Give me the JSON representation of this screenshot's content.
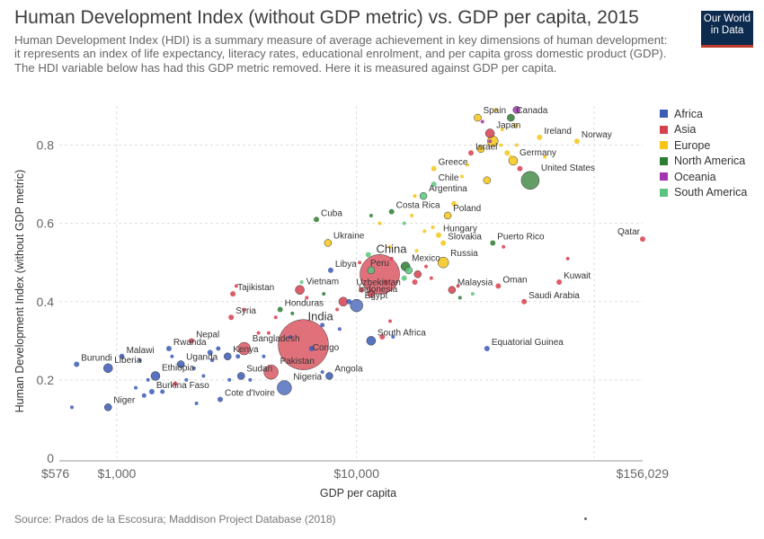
{
  "header": {
    "title": "Human Development Index (without GDP metric) vs. GDP per capita, 2015",
    "subtitle": "Human Development Index (HDI) is a summary measure of average achievement in key dimensions of human development: it represents an index of life expectancy, literacy rates, educational enrolment, and per capita gross domestic product (GDP). The HDI variable below has had this GDP metric removed. Here it is measured against GDP per capita.",
    "logo_line1": "Our World",
    "logo_line2": "in Data"
  },
  "source": "Source: Prados de la Escosura; Maddison Project Database (2018)",
  "colors": {
    "Africa": "#3b5bb5",
    "Asia": "#d6414f",
    "Europe": "#f5c518",
    "North America": "#2e7d32",
    "Oceania": "#a235b0",
    "South America": "#5cc47e"
  },
  "chart_data": {
    "type": "scatter",
    "xlabel": "GDP per capita",
    "ylabel": "Human Development Index (without GDP metric)",
    "xscale": "log",
    "xlim": [
      576,
      156029
    ],
    "ylim": [
      0,
      0.9
    ],
    "x_ticks": [
      576,
      1000,
      10000,
      156029
    ],
    "x_tick_labels": [
      "$576",
      "$1,000",
      "$10,000",
      "$156,029"
    ],
    "y_ticks": [
      0,
      0.2,
      0.4,
      0.6,
      0.8
    ],
    "y_tick_labels": [
      "0",
      "0.2",
      "0.4",
      "0.6",
      "0.8"
    ],
    "grid": true,
    "legend_position": "right",
    "legend": [
      "Africa",
      "Asia",
      "Europe",
      "North America",
      "Oceania",
      "South America"
    ],
    "points": [
      {
        "label": "India",
        "x": 6000,
        "y": 0.29,
        "r": 28,
        "region": "Asia"
      },
      {
        "label": "China",
        "x": 12500,
        "y": 0.47,
        "r": 22,
        "region": "Asia"
      },
      {
        "label": "Peru",
        "x": 11500,
        "y": 0.48,
        "r": 4,
        "region": "South America"
      },
      {
        "label": "United States",
        "x": 53000,
        "y": 0.71,
        "r": 10,
        "region": "North America"
      },
      {
        "label": "Canada",
        "x": 44000,
        "y": 0.87,
        "r": 4,
        "region": "North America"
      },
      {
        "label": "Spain",
        "x": 32000,
        "y": 0.87,
        "r": 4,
        "region": "Europe"
      },
      {
        "label": "Japan",
        "x": 36000,
        "y": 0.83,
        "r": 5,
        "region": "Asia"
      },
      {
        "label": "Ireland",
        "x": 58000,
        "y": 0.82,
        "r": 3,
        "region": "Europe"
      },
      {
        "label": "Norway",
        "x": 83000,
        "y": 0.81,
        "r": 3,
        "region": "Europe"
      },
      {
        "label": "Israel",
        "x": 30000,
        "y": 0.78,
        "r": 3,
        "region": "Asia"
      },
      {
        "label": "Germany",
        "x": 45000,
        "y": 0.76,
        "r": 5,
        "region": "Europe"
      },
      {
        "label": "Greece",
        "x": 21000,
        "y": 0.74,
        "r": 3,
        "region": "Europe"
      },
      {
        "label": "Chile",
        "x": 21000,
        "y": 0.7,
        "r": 3,
        "region": "South America"
      },
      {
        "label": "Argentina",
        "x": 19000,
        "y": 0.67,
        "r": 4,
        "region": "South America"
      },
      {
        "label": "Costa Rica",
        "x": 14000,
        "y": 0.63,
        "r": 3,
        "region": "North America"
      },
      {
        "label": "Cuba",
        "x": 6800,
        "y": 0.61,
        "r": 3,
        "region": "North America"
      },
      {
        "label": "Poland",
        "x": 24000,
        "y": 0.62,
        "r": 4,
        "region": "Europe"
      },
      {
        "label": "Hungary",
        "x": 22000,
        "y": 0.57,
        "r": 3,
        "region": "Europe"
      },
      {
        "label": "Slovakia",
        "x": 23000,
        "y": 0.55,
        "r": 3,
        "region": "Europe"
      },
      {
        "label": "Puerto Rico",
        "x": 37000,
        "y": 0.55,
        "r": 3,
        "region": "North America"
      },
      {
        "label": "Qatar",
        "x": 156029,
        "y": 0.56,
        "r": 3,
        "region": "Asia"
      },
      {
        "label": "Ukraine",
        "x": 7600,
        "y": 0.55,
        "r": 4,
        "region": "Europe"
      },
      {
        "label": "Russia",
        "x": 23000,
        "y": 0.5,
        "r": 6,
        "region": "Europe"
      },
      {
        "label": "Mexico",
        "x": 16000,
        "y": 0.49,
        "r": 5,
        "region": "North America"
      },
      {
        "label": "Libya",
        "x": 7800,
        "y": 0.48,
        "r": 3,
        "region": "Africa"
      },
      {
        "label": "Uzbekistan",
        "x": 10500,
        "y": 0.43,
        "r": 3,
        "region": "Asia"
      },
      {
        "label": "Indonesia",
        "x": 11500,
        "y": 0.42,
        "r": 4,
        "region": "Asia"
      },
      {
        "label": "Malaysia",
        "x": 25000,
        "y": 0.43,
        "r": 4,
        "region": "Asia"
      },
      {
        "label": "Oman",
        "x": 39000,
        "y": 0.44,
        "r": 3,
        "region": "Asia"
      },
      {
        "label": "Kuwait",
        "x": 70000,
        "y": 0.45,
        "r": 3,
        "region": "Asia"
      },
      {
        "label": "Saudi Arabia",
        "x": 50000,
        "y": 0.4,
        "r": 3,
        "region": "Asia"
      },
      {
        "label": "Tajikistan",
        "x": 3050,
        "y": 0.42,
        "r": 3,
        "region": "Asia"
      },
      {
        "label": "Vietnam",
        "x": 5800,
        "y": 0.43,
        "r": 5,
        "region": "Asia"
      },
      {
        "label": "Honduras",
        "x": 4800,
        "y": 0.38,
        "r": 3,
        "region": "North America"
      },
      {
        "label": "Egypt",
        "x": 10000,
        "y": 0.39,
        "r": 7,
        "region": "Africa"
      },
      {
        "label": "Syria",
        "x": 3000,
        "y": 0.36,
        "r": 3,
        "region": "Asia"
      },
      {
        "label": "South Africa",
        "x": 11500,
        "y": 0.3,
        "r": 5,
        "region": "Africa"
      },
      {
        "label": "Equatorial Guinea",
        "x": 35000,
        "y": 0.28,
        "r": 3,
        "region": "Africa"
      },
      {
        "label": "Nepal",
        "x": 2050,
        "y": 0.3,
        "r": 3,
        "region": "Asia"
      },
      {
        "label": "Bangladesh",
        "x": 3400,
        "y": 0.28,
        "r": 7,
        "region": "Asia"
      },
      {
        "label": "Kenya",
        "x": 2900,
        "y": 0.26,
        "r": 4,
        "region": "Africa"
      },
      {
        "label": "Rwanda",
        "x": 1650,
        "y": 0.28,
        "r": 3,
        "region": "Africa"
      },
      {
        "label": "Malawi",
        "x": 1050,
        "y": 0.26,
        "r": 3,
        "region": "Africa"
      },
      {
        "label": "Uganda",
        "x": 1850,
        "y": 0.24,
        "r": 4,
        "region": "Africa"
      },
      {
        "label": "Congo",
        "x": 6500,
        "y": 0.28,
        "r": 3,
        "region": "Africa"
      },
      {
        "label": "Burundi",
        "x": 680,
        "y": 0.24,
        "r": 3,
        "region": "Africa"
      },
      {
        "label": "Ethiopia",
        "x": 1450,
        "y": 0.21,
        "r": 5,
        "region": "Africa"
      },
      {
        "label": "Liberia",
        "x": 920,
        "y": 0.23,
        "r": 5,
        "region": "Africa"
      },
      {
        "label": "Pakistan",
        "x": 4400,
        "y": 0.22,
        "r": 8,
        "region": "Asia"
      },
      {
        "label": "Sudan",
        "x": 3300,
        "y": 0.21,
        "r": 4,
        "region": "Africa"
      },
      {
        "label": "Angola",
        "x": 7700,
        "y": 0.21,
        "r": 4,
        "region": "Africa"
      },
      {
        "label": "Nigeria",
        "x": 5000,
        "y": 0.18,
        "r": 8,
        "region": "Africa"
      },
      {
        "label": "Burkina Faso",
        "x": 1400,
        "y": 0.17,
        "r": 3,
        "region": "Africa"
      },
      {
        "label": "Cote d'Ivoire",
        "x": 2700,
        "y": 0.15,
        "r": 3,
        "region": "Africa"
      },
      {
        "label": "Niger",
        "x": 920,
        "y": 0.13,
        "r": 4,
        "region": "Africa"
      },
      {
        "x": 650,
        "y": 0.13,
        "r": 2,
        "region": "Africa"
      },
      {
        "x": 1300,
        "y": 0.16,
        "r": 2.5,
        "region": "Africa"
      },
      {
        "x": 1550,
        "y": 0.17,
        "r": 2.5,
        "region": "Africa"
      },
      {
        "x": 1200,
        "y": 0.18,
        "r": 2,
        "region": "Africa"
      },
      {
        "x": 1750,
        "y": 0.19,
        "r": 2.5,
        "region": "Asia"
      },
      {
        "x": 1950,
        "y": 0.2,
        "r": 2,
        "region": "Africa"
      },
      {
        "x": 2150,
        "y": 0.14,
        "r": 2,
        "region": "Africa"
      },
      {
        "x": 2300,
        "y": 0.21,
        "r": 2,
        "region": "Africa"
      },
      {
        "x": 2500,
        "y": 0.25,
        "r": 2,
        "region": "Africa"
      },
      {
        "x": 2450,
        "y": 0.27,
        "r": 3,
        "region": "Africa"
      },
      {
        "x": 2650,
        "y": 0.28,
        "r": 2.5,
        "region": "Africa"
      },
      {
        "x": 3200,
        "y": 0.26,
        "r": 2.5,
        "region": "Africa"
      },
      {
        "x": 1250,
        "y": 0.25,
        "r": 2,
        "region": "Africa"
      },
      {
        "x": 1700,
        "y": 0.26,
        "r": 2,
        "region": "Africa"
      },
      {
        "x": 1350,
        "y": 0.2,
        "r": 2,
        "region": "Africa"
      },
      {
        "x": 2100,
        "y": 0.23,
        "r": 2,
        "region": "Africa"
      },
      {
        "x": 2950,
        "y": 0.2,
        "r": 2,
        "region": "Africa"
      },
      {
        "x": 3600,
        "y": 0.2,
        "r": 2,
        "region": "Africa"
      },
      {
        "x": 4100,
        "y": 0.26,
        "r": 2,
        "region": "Africa"
      },
      {
        "x": 5300,
        "y": 0.31,
        "r": 2,
        "region": "Africa"
      },
      {
        "x": 7200,
        "y": 0.34,
        "r": 2.5,
        "region": "Africa"
      },
      {
        "x": 9300,
        "y": 0.4,
        "r": 3,
        "region": "Africa"
      },
      {
        "x": 7200,
        "y": 0.22,
        "r": 2,
        "region": "Africa"
      },
      {
        "x": 8500,
        "y": 0.33,
        "r": 2,
        "region": "Africa"
      },
      {
        "x": 12800,
        "y": 0.31,
        "r": 3,
        "region": "Asia"
      },
      {
        "x": 14200,
        "y": 0.31,
        "r": 2,
        "region": "Africa"
      },
      {
        "x": 13800,
        "y": 0.35,
        "r": 2,
        "region": "Asia"
      },
      {
        "x": 13200,
        "y": 0.45,
        "r": 3,
        "region": "Asia"
      },
      {
        "x": 18000,
        "y": 0.47,
        "r": 4,
        "region": "Asia"
      },
      {
        "x": 17500,
        "y": 0.45,
        "r": 3,
        "region": "Asia"
      },
      {
        "x": 8800,
        "y": 0.4,
        "r": 5,
        "region": "Asia"
      },
      {
        "x": 8300,
        "y": 0.38,
        "r": 2,
        "region": "Asia"
      },
      {
        "x": 7300,
        "y": 0.42,
        "r": 2,
        "region": "North America"
      },
      {
        "x": 6200,
        "y": 0.41,
        "r": 2,
        "region": "Asia"
      },
      {
        "x": 5400,
        "y": 0.37,
        "r": 2,
        "region": "North America"
      },
      {
        "x": 4600,
        "y": 0.36,
        "r": 2,
        "region": "Asia"
      },
      {
        "x": 4300,
        "y": 0.32,
        "r": 2,
        "region": "Asia"
      },
      {
        "x": 3900,
        "y": 0.32,
        "r": 2,
        "region": "Asia"
      },
      {
        "x": 3400,
        "y": 0.38,
        "r": 2,
        "region": "Asia"
      },
      {
        "x": 3150,
        "y": 0.44,
        "r": 2,
        "region": "Asia"
      },
      {
        "x": 5900,
        "y": 0.45,
        "r": 2,
        "region": "South America"
      },
      {
        "x": 11200,
        "y": 0.52,
        "r": 3,
        "region": "South America"
      },
      {
        "x": 10300,
        "y": 0.5,
        "r": 2,
        "region": "Asia"
      },
      {
        "x": 14000,
        "y": 0.51,
        "r": 2,
        "region": "Asia"
      },
      {
        "x": 16500,
        "y": 0.48,
        "r": 4,
        "region": "South America"
      },
      {
        "x": 15800,
        "y": 0.46,
        "r": 3,
        "region": "South America"
      },
      {
        "x": 19500,
        "y": 0.49,
        "r": 2,
        "region": "Asia"
      },
      {
        "x": 20500,
        "y": 0.46,
        "r": 2,
        "region": "Asia"
      },
      {
        "x": 26500,
        "y": 0.44,
        "r": 2,
        "region": "Asia"
      },
      {
        "x": 27000,
        "y": 0.41,
        "r": 2,
        "region": "North America"
      },
      {
        "x": 12500,
        "y": 0.6,
        "r": 2,
        "region": "Europe"
      },
      {
        "x": 13800,
        "y": 0.54,
        "r": 2,
        "region": "Europe"
      },
      {
        "x": 17000,
        "y": 0.62,
        "r": 2,
        "region": "Europe"
      },
      {
        "x": 19200,
        "y": 0.58,
        "r": 2,
        "region": "Europe"
      },
      {
        "x": 17800,
        "y": 0.53,
        "r": 2,
        "region": "Europe"
      },
      {
        "x": 20800,
        "y": 0.59,
        "r": 2,
        "region": "Europe"
      },
      {
        "x": 17500,
        "y": 0.67,
        "r": 2,
        "region": "Europe"
      },
      {
        "x": 15800,
        "y": 0.6,
        "r": 2,
        "region": "South America"
      },
      {
        "x": 11500,
        "y": 0.62,
        "r": 2,
        "region": "North America"
      },
      {
        "x": 25500,
        "y": 0.65,
        "r": 3,
        "region": "Europe"
      },
      {
        "x": 27500,
        "y": 0.72,
        "r": 2,
        "region": "Europe"
      },
      {
        "x": 29000,
        "y": 0.75,
        "r": 2,
        "region": "Europe"
      },
      {
        "x": 33000,
        "y": 0.79,
        "r": 4,
        "region": "Europe"
      },
      {
        "x": 35000,
        "y": 0.71,
        "r": 4,
        "region": "Europe"
      },
      {
        "x": 37000,
        "y": 0.81,
        "r": 6,
        "region": "Europe"
      },
      {
        "x": 40000,
        "y": 0.8,
        "r": 2,
        "region": "Europe"
      },
      {
        "x": 40500,
        "y": 0.84,
        "r": 2,
        "region": "Europe"
      },
      {
        "x": 42500,
        "y": 0.78,
        "r": 3,
        "region": "Europe"
      },
      {
        "x": 44000,
        "y": 0.77,
        "r": 2,
        "region": "Europe"
      },
      {
        "x": 46500,
        "y": 0.8,
        "r": 2,
        "region": "Europe"
      },
      {
        "x": 46000,
        "y": 0.85,
        "r": 3,
        "region": "Europe"
      },
      {
        "x": 48000,
        "y": 0.74,
        "r": 3,
        "region": "Asia"
      },
      {
        "x": 38000,
        "y": 0.89,
        "r": 2,
        "region": "Europe"
      },
      {
        "x": 46500,
        "y": 0.89,
        "r": 4,
        "region": "Oceania"
      },
      {
        "x": 33500,
        "y": 0.86,
        "r": 2,
        "region": "Oceania"
      },
      {
        "x": 36000,
        "y": 0.81,
        "r": 2,
        "region": "Oceania"
      },
      {
        "x": 61000,
        "y": 0.77,
        "r": 2,
        "region": "Europe"
      },
      {
        "x": 41000,
        "y": 0.54,
        "r": 2,
        "region": "Asia"
      },
      {
        "x": 76000,
        "y": 0.51,
        "r": 2,
        "region": "Asia"
      },
      {
        "x": 30500,
        "y": 0.42,
        "r": 2,
        "region": "South America"
      }
    ]
  }
}
